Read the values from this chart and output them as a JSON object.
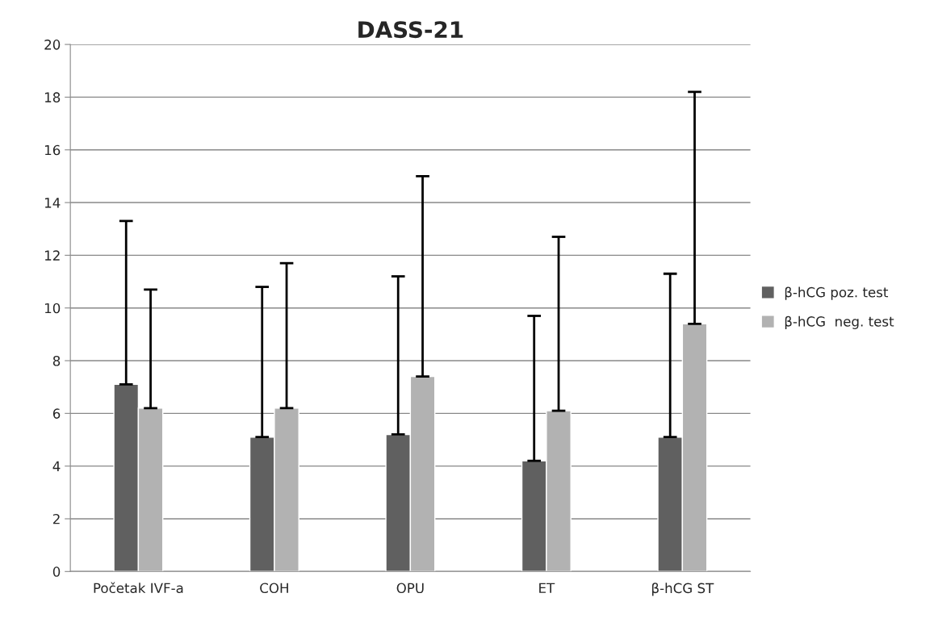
{
  "chart_data": {
    "type": "bar",
    "title": "DASS-21",
    "categories": [
      "Početak IVF-a",
      "COH",
      "OPU",
      "ET",
      "β-hCG ST"
    ],
    "series": [
      {
        "name": "β-hCG poz. test",
        "color": "#606060",
        "values": [
          7.1,
          5.1,
          5.2,
          4.2,
          5.1
        ],
        "errors": [
          [
            7.1,
            13.3
          ],
          [
            5.1,
            10.8
          ],
          [
            5.2,
            11.2
          ],
          [
            4.2,
            9.7
          ],
          [
            5.1,
            11.3
          ]
        ]
      },
      {
        "name": "β-hCG  neg. test",
        "color": "#b2b2b2",
        "values": [
          6.2,
          6.2,
          7.4,
          6.1,
          9.4
        ],
        "errors": [
          [
            6.2,
            10.7
          ],
          [
            6.2,
            11.7
          ],
          [
            7.4,
            15.0
          ],
          [
            6.1,
            12.7
          ],
          [
            9.4,
            18.2
          ]
        ]
      }
    ],
    "ylim": [
      0,
      20
    ],
    "yticks": [
      0,
      2,
      4,
      6,
      8,
      10,
      12,
      14,
      16,
      18,
      20
    ],
    "grid": "y",
    "legend": "right"
  }
}
